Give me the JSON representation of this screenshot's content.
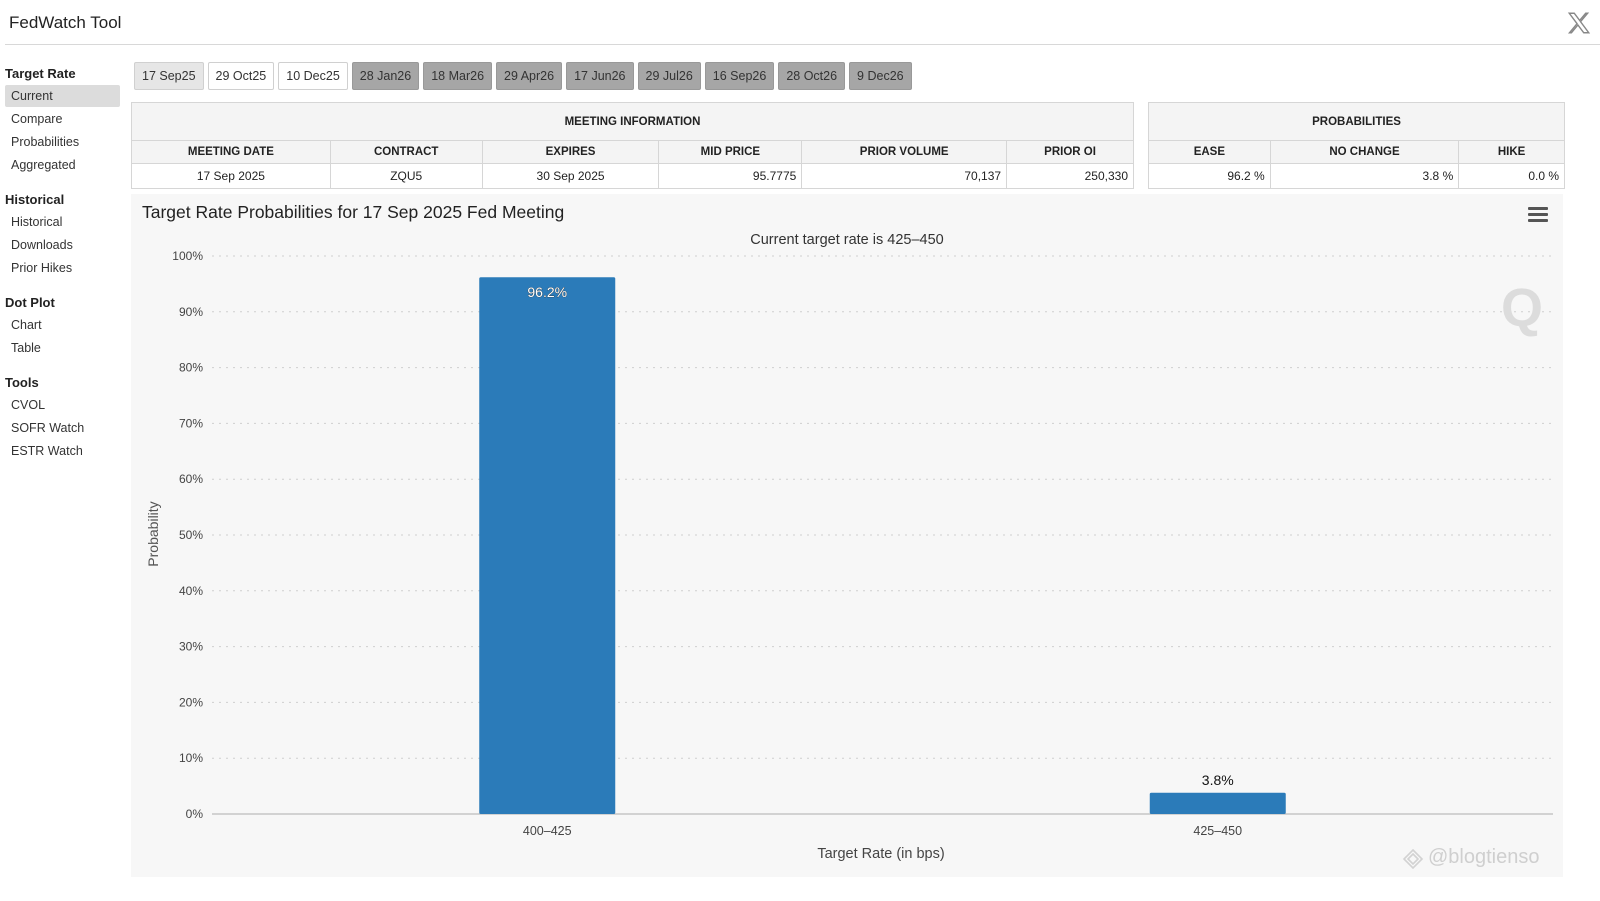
{
  "app": {
    "title": "FedWatch Tool"
  },
  "sidebar": {
    "groups": [
      {
        "heading": "Target Rate",
        "items": [
          "Current",
          "Compare",
          "Probabilities",
          "Aggregated"
        ]
      },
      {
        "heading": "Historical",
        "items": [
          "Historical",
          "Downloads",
          "Prior Hikes"
        ]
      },
      {
        "heading": "Dot Plot",
        "items": [
          "Chart",
          "Table"
        ]
      },
      {
        "heading": "Tools",
        "items": [
          "CVOL",
          "SOFR Watch",
          "ESTR Watch"
        ]
      }
    ]
  },
  "tabs": [
    "17 Sep25",
    "29 Oct25",
    "10 Dec25",
    "28 Jan26",
    "18 Mar26",
    "29 Apr26",
    "17 Jun26",
    "29 Jul26",
    "16 Sep26",
    "28 Oct26",
    "9 Dec26"
  ],
  "meeting_info": {
    "title": "MEETING INFORMATION",
    "headers": [
      "MEETING DATE",
      "CONTRACT",
      "EXPIRES",
      "MID PRICE",
      "PRIOR VOLUME",
      "PRIOR OI"
    ],
    "row": [
      "17 Sep 2025",
      "ZQU5",
      "30 Sep 2025",
      "95.7775",
      "70,137",
      "250,330"
    ]
  },
  "probabilities": {
    "title": "PROBABILITIES",
    "headers": [
      "EASE",
      "NO CHANGE",
      "HIKE"
    ],
    "row": [
      "96.2 %",
      "3.8 %",
      "0.0 %"
    ]
  },
  "watermark": "@blogtienso",
  "colors": {
    "bar": "#2b7bb9",
    "selected_tab": "#e6e6e6",
    "future_tab": "#a6a6a6"
  },
  "chart_data": {
    "type": "bar",
    "title": "Target Rate Probabilities for 17 Sep 2025 Fed Meeting",
    "subtitle": "Current target rate is 425–450",
    "xlabel": "Target Rate (in bps)",
    "ylabel": "Probability",
    "categories": [
      "400–425",
      "425–450"
    ],
    "values": [
      96.2,
      3.8
    ],
    "data_labels": [
      "96.2%",
      "3.8%"
    ],
    "yticks": [
      "0%",
      "10%",
      "20%",
      "30%",
      "40%",
      "50%",
      "60%",
      "70%",
      "80%",
      "90%",
      "100%"
    ],
    "ylim": [
      0,
      100
    ],
    "grid": true,
    "legend": "none"
  }
}
